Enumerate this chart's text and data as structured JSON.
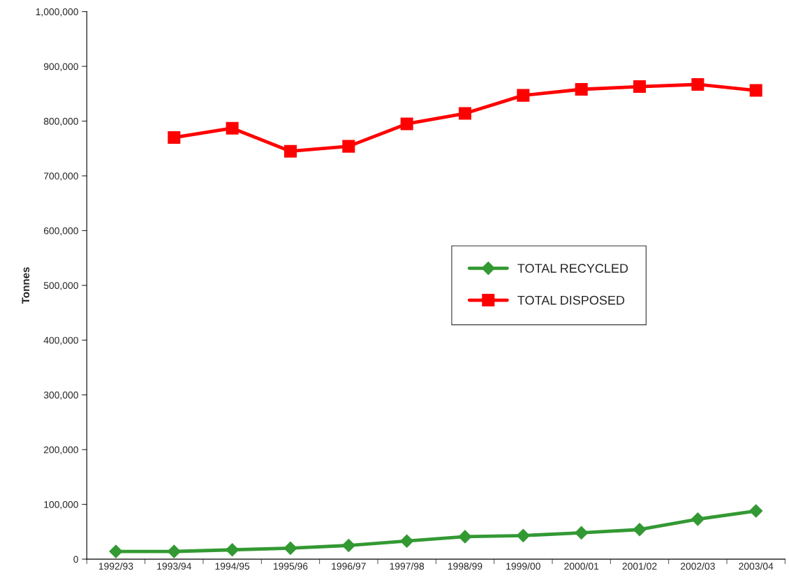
{
  "chart_data": {
    "type": "line",
    "ylabel": "Tonnes",
    "categories": [
      "1992/93",
      "1993/94",
      "1994/95",
      "1995/96",
      "1996/97",
      "1997/98",
      "1998/99",
      "1999/00",
      "2000/01",
      "2001/02",
      "2002/03",
      "2003/04"
    ],
    "series": [
      {
        "name": "TOTAL RECYCLED",
        "color": "#339933",
        "marker": "diamond",
        "values": [
          14000,
          14000,
          17000,
          20000,
          25000,
          33000,
          41000,
          43000,
          48000,
          54000,
          73000,
          88000
        ]
      },
      {
        "name": "TOTAL DISPOSED",
        "color": "#ff0000",
        "marker": "square",
        "values": [
          null,
          770000,
          787000,
          745000,
          754000,
          795000,
          814000,
          847000,
          858000,
          863000,
          867000,
          856000
        ]
      }
    ],
    "ylim": [
      0,
      1000000
    ],
    "yticks": [
      0,
      {
        "value": 100000,
        "label": "100,000"
      },
      {
        "value": 200000,
        "label": "200,000"
      },
      {
        "value": 300000,
        "label": "300,000"
      },
      {
        "value": 400000,
        "label": "400,000"
      },
      {
        "value": 500000,
        "label": "500,000"
      },
      {
        "value": 600000,
        "label": "600,000"
      },
      {
        "value": 700000,
        "label": "700,000"
      },
      {
        "value": 800000,
        "label": "800,000"
      },
      {
        "value": 900000,
        "label": "900,000"
      },
      {
        "value": 1000000,
        "label": "1,000,000"
      }
    ],
    "grid": false,
    "legend": "center right"
  }
}
